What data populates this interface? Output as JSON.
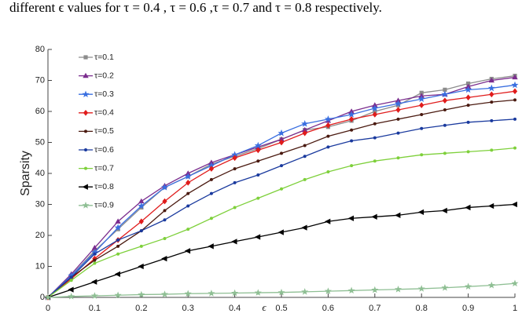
{
  "caption": "different ϵ values for τ = 0.4 , τ = 0.6 ,τ = 0.7 and τ = 0.8 respectively.",
  "chart_data": {
    "type": "line",
    "xlabel": "ϵ",
    "ylabel": "Sparsity",
    "x": [
      0,
      0.05,
      0.1,
      0.15,
      0.2,
      0.25,
      0.3,
      0.35,
      0.4,
      0.45,
      0.5,
      0.55,
      0.6,
      0.65,
      0.7,
      0.75,
      0.8,
      0.85,
      0.9,
      0.95,
      1
    ],
    "xlim": [
      0,
      1
    ],
    "xticks": [
      0,
      0.1,
      0.2,
      0.3,
      0.4,
      0.5,
      0.6,
      0.7,
      0.8,
      0.9,
      1
    ],
    "ylim": [
      0,
      80
    ],
    "yticks": [
      0,
      10,
      20,
      30,
      40,
      50,
      60,
      70,
      80
    ],
    "legend": "upper left",
    "series": [
      {
        "name": "τ=0.1",
        "color": "#8c8c8c",
        "marker": "square",
        "values": [
          0,
          7,
          15,
          22,
          29,
          35.5,
          39,
          43,
          45.5,
          48,
          51,
          54,
          55,
          57,
          60,
          62,
          66,
          67,
          69,
          70.5,
          71.5
        ]
      },
      {
        "name": "τ=0.2",
        "color": "#7b2d8e",
        "marker": "triangle",
        "values": [
          0,
          7.5,
          16,
          24.5,
          31,
          36,
          40,
          43.5,
          46,
          48.5,
          51,
          54,
          57,
          60,
          62,
          63.5,
          65,
          65.5,
          68,
          70,
          71
        ]
      },
      {
        "name": "τ=0.3",
        "color": "#3a6fe0",
        "marker": "star",
        "values": [
          0,
          7,
          14.5,
          22.5,
          29.5,
          35.5,
          39,
          42.5,
          46,
          49,
          53,
          56,
          57.5,
          59,
          61,
          62.5,
          64,
          65.5,
          67,
          67.5,
          68.5
        ]
      },
      {
        "name": "τ=0.4",
        "color": "#e01c1c",
        "marker": "diamond",
        "values": [
          0,
          6,
          12.5,
          18.5,
          24.5,
          31,
          37,
          41.5,
          45,
          47.5,
          50,
          53,
          55.5,
          57.5,
          59,
          60.5,
          62,
          63.5,
          64.5,
          65.5,
          66.5
        ]
      },
      {
        "name": "τ=0.5",
        "color": "#4a1a10",
        "marker": "dot",
        "values": [
          0,
          6.5,
          12,
          16.5,
          21.5,
          28,
          33.5,
          38,
          41.5,
          44,
          46.5,
          49,
          52,
          54,
          56,
          57.5,
          59,
          60.5,
          62,
          63,
          63.7
        ]
      },
      {
        "name": "τ=0.6",
        "color": "#1a3a9e",
        "marker": "dot",
        "values": [
          0,
          6.5,
          14,
          18.5,
          21.5,
          25,
          29.5,
          33.5,
          37,
          39.5,
          42.5,
          45.5,
          48.5,
          50.5,
          51.5,
          53,
          54.5,
          55.5,
          56.5,
          57,
          57.5
        ]
      },
      {
        "name": "τ=0.7",
        "color": "#7ed03b",
        "marker": "dot",
        "values": [
          0,
          5.5,
          11,
          14,
          16.5,
          19,
          22,
          25.5,
          29,
          32,
          35,
          38,
          40.5,
          42.5,
          44,
          45,
          46,
          46.5,
          47,
          47.5,
          48.2
        ]
      },
      {
        "name": "τ=0.8",
        "color": "#000000",
        "marker": "triangle-left",
        "values": [
          0,
          2.5,
          5,
          7.5,
          10,
          12.5,
          15,
          16.5,
          18,
          19.5,
          21,
          22.5,
          24.5,
          25.5,
          26,
          26.5,
          27.5,
          28,
          29,
          29.5,
          30
        ]
      },
      {
        "name": "τ=0.9",
        "color": "#8fbf94",
        "marker": "star",
        "values": [
          0,
          0.3,
          0.5,
          0.7,
          0.9,
          1.0,
          1.2,
          1.3,
          1.4,
          1.5,
          1.6,
          1.8,
          2,
          2.2,
          2.4,
          2.6,
          2.8,
          3.1,
          3.5,
          3.9,
          4.5
        ]
      }
    ]
  }
}
